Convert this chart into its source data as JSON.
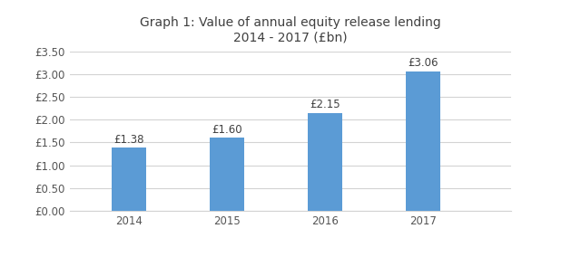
{
  "title_line1": "Graph 1: Value of annual equity release lending",
  "title_line2": "2014 - 2017 (£bn)",
  "categories": [
    "2014",
    "2015",
    "2016",
    "2017"
  ],
  "values": [
    1.38,
    1.6,
    2.15,
    3.06
  ],
  "bar_color": "#5B9BD5",
  "bar_labels": [
    "£1.38",
    "£1.60",
    "£2.15",
    "£3.06"
  ],
  "ylim": [
    0,
    3.5
  ],
  "yticks": [
    0.0,
    0.5,
    1.0,
    1.5,
    2.0,
    2.5,
    3.0,
    3.5
  ],
  "ytick_labels": [
    "£0.00",
    "£0.50",
    "£1.00",
    "£1.50",
    "£2.00",
    "£2.50",
    "£3.00",
    "£3.50"
  ],
  "background_color": "#ffffff",
  "grid_color": "#d3d3d3",
  "title_fontsize": 10,
  "label_fontsize": 8.5,
  "tick_fontsize": 8.5,
  "bar_width": 0.35,
  "fig_width": 6.4,
  "fig_height": 2.84
}
